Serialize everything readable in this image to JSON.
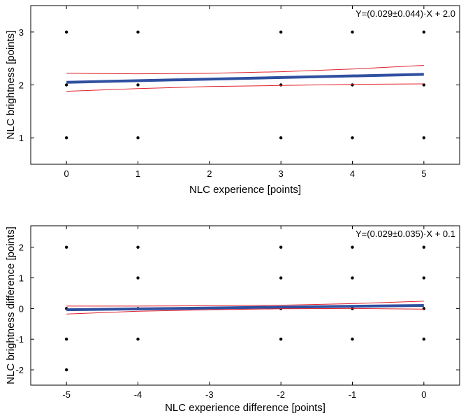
{
  "chart_data": [
    {
      "type": "scatter",
      "title": "",
      "xlabel": "NLC experience [points]",
      "ylabel": "NLC brightness [points]",
      "xlim": [
        -0.5,
        5.5
      ],
      "ylim": [
        0.5,
        3.5
      ],
      "xticks": [
        0,
        1,
        2,
        3,
        4,
        5
      ],
      "yticks": [
        1,
        2,
        3
      ],
      "grid": false,
      "annotation": "Y=(0.029±0.044)·X + 2.0",
      "series": [
        {
          "kind": "points",
          "color": "#000000",
          "x": [
            0,
            1,
            3,
            4,
            5,
            0,
            1,
            3,
            4,
            5,
            0,
            1,
            3,
            4,
            5
          ],
          "y": [
            3,
            3,
            3,
            3,
            3,
            2,
            2,
            2,
            2,
            2,
            1,
            1,
            1,
            1,
            1
          ]
        },
        {
          "kind": "fit",
          "color": "#2f4fa0",
          "x": [
            0,
            5
          ],
          "y": [
            2.05,
            2.2
          ]
        },
        {
          "kind": "ci-upper",
          "color": "#e0202a",
          "x": [
            0,
            1,
            2,
            3,
            4,
            5
          ],
          "y": [
            2.22,
            2.21,
            2.22,
            2.25,
            2.3,
            2.37
          ]
        },
        {
          "kind": "ci-lower",
          "color": "#e0202a",
          "x": [
            0,
            1,
            2,
            3,
            4,
            5
          ],
          "y": [
            1.88,
            1.93,
            1.97,
            1.99,
            2.01,
            2.02
          ]
        }
      ]
    },
    {
      "type": "scatter",
      "title": "",
      "xlabel": "NLC experience difference [points]",
      "ylabel": "NLC brightness difference [points]",
      "xlim": [
        -5.5,
        0.5
      ],
      "ylim": [
        -2.5,
        2.7
      ],
      "xticks": [
        -5,
        -4,
        -3,
        -2,
        -1,
        0
      ],
      "yticks": [
        -2,
        -1,
        0,
        1,
        2
      ],
      "grid": false,
      "annotation": "Y=(0.029±0.035)·X + 0.1",
      "series": [
        {
          "kind": "points",
          "color": "#000000",
          "x": [
            -5,
            -4,
            -2,
            -1,
            0,
            -4,
            -2,
            -1,
            0,
            -5,
            -4,
            -2,
            -1,
            0,
            -5,
            -4,
            -2,
            -1,
            0,
            -5
          ],
          "y": [
            2,
            2,
            2,
            2,
            2,
            1,
            1,
            1,
            1,
            0,
            0,
            0,
            0,
            0,
            -1,
            -1,
            -1,
            -1,
            -1,
            -2
          ]
        },
        {
          "kind": "fit",
          "color": "#2f4fa0",
          "x": [
            -5,
            0
          ],
          "y": [
            -0.04,
            0.1
          ]
        },
        {
          "kind": "ci-upper",
          "color": "#e0202a",
          "x": [
            -5,
            -4,
            -3,
            -2,
            -1,
            0
          ],
          "y": [
            0.08,
            0.08,
            0.09,
            0.11,
            0.16,
            0.24
          ]
        },
        {
          "kind": "ci-lower",
          "color": "#e0202a",
          "x": [
            -5,
            -4,
            -3,
            -2,
            -1,
            0
          ],
          "y": [
            -0.18,
            -0.09,
            -0.04,
            -0.01,
            0.0,
            -0.02
          ]
        }
      ]
    }
  ]
}
